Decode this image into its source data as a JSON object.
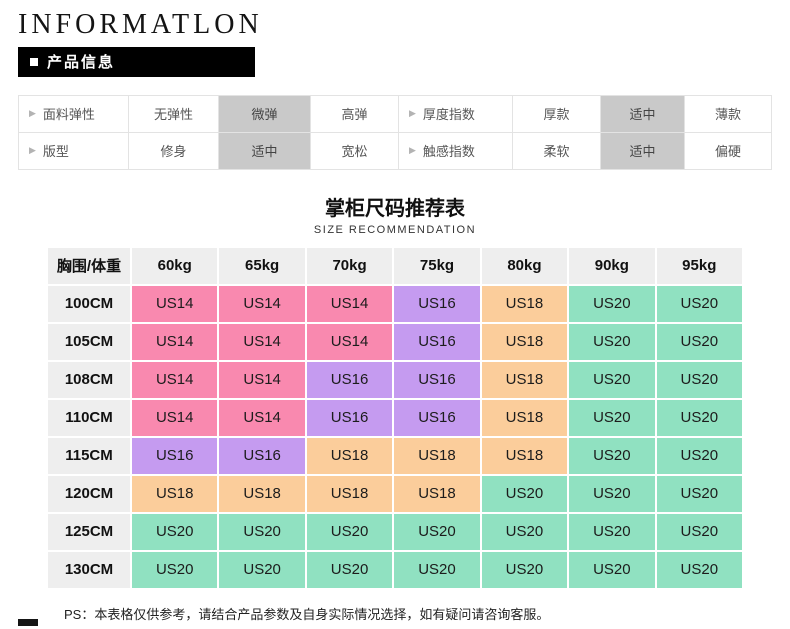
{
  "header": {
    "title": "INFORMATLON",
    "badge": "产品信息"
  },
  "attribute_table": {
    "rows": [
      {
        "cells": [
          {
            "label": "面料弹性",
            "type": "name"
          },
          {
            "label": "无弹性",
            "type": "value"
          },
          {
            "label": "微弹",
            "type": "value",
            "highlight": true
          },
          {
            "label": "高弹",
            "type": "value"
          },
          {
            "label": "厚度指数",
            "type": "name"
          },
          {
            "label": "厚款",
            "type": "value"
          },
          {
            "label": "适中",
            "type": "value",
            "highlight": true
          },
          {
            "label": "薄款",
            "type": "value"
          }
        ]
      },
      {
        "cells": [
          {
            "label": "版型",
            "type": "name"
          },
          {
            "label": "修身",
            "type": "value"
          },
          {
            "label": "适中",
            "type": "value",
            "highlight": true
          },
          {
            "label": "宽松",
            "type": "value"
          },
          {
            "label": "触感指数",
            "type": "name"
          },
          {
            "label": "柔软",
            "type": "value"
          },
          {
            "label": "适中",
            "type": "value",
            "highlight": true
          },
          {
            "label": "偏硬",
            "type": "value"
          }
        ]
      }
    ]
  },
  "size_section": {
    "title": "掌柜尺码推荐表",
    "subtitle": "SIZE RECOMMENDATION"
  },
  "size_table": {
    "columns": [
      "胸围/体重",
      "60kg",
      "65kg",
      "70kg",
      "75kg",
      "80kg",
      "90kg",
      "95kg"
    ],
    "rows": [
      {
        "label": "100CM",
        "cells": [
          {
            "value": "US14",
            "color": "pink"
          },
          {
            "value": "US14",
            "color": "pink"
          },
          {
            "value": "US14",
            "color": "pink"
          },
          {
            "value": "US16",
            "color": "purple"
          },
          {
            "value": "US18",
            "color": "orange"
          },
          {
            "value": "US20",
            "color": "green"
          },
          {
            "value": "US20",
            "color": "green"
          }
        ]
      },
      {
        "label": "105CM",
        "cells": [
          {
            "value": "US14",
            "color": "pink"
          },
          {
            "value": "US14",
            "color": "pink"
          },
          {
            "value": "US14",
            "color": "pink"
          },
          {
            "value": "US16",
            "color": "purple"
          },
          {
            "value": "US18",
            "color": "orange"
          },
          {
            "value": "US20",
            "color": "green"
          },
          {
            "value": "US20",
            "color": "green"
          }
        ]
      },
      {
        "label": "108CM",
        "cells": [
          {
            "value": "US14",
            "color": "pink"
          },
          {
            "value": "US14",
            "color": "pink"
          },
          {
            "value": "US16",
            "color": "purple"
          },
          {
            "value": "US16",
            "color": "purple"
          },
          {
            "value": "US18",
            "color": "orange"
          },
          {
            "value": "US20",
            "color": "green"
          },
          {
            "value": "US20",
            "color": "green"
          }
        ]
      },
      {
        "label": "110CM",
        "cells": [
          {
            "value": "US14",
            "color": "pink"
          },
          {
            "value": "US14",
            "color": "pink"
          },
          {
            "value": "US16",
            "color": "purple"
          },
          {
            "value": "US16",
            "color": "purple"
          },
          {
            "value": "US18",
            "color": "orange"
          },
          {
            "value": "US20",
            "color": "green"
          },
          {
            "value": "US20",
            "color": "green"
          }
        ]
      },
      {
        "label": "115CM",
        "cells": [
          {
            "value": "US16",
            "color": "purple"
          },
          {
            "value": "US16",
            "color": "purple"
          },
          {
            "value": "US18",
            "color": "orange"
          },
          {
            "value": "US18",
            "color": "orange"
          },
          {
            "value": "US18",
            "color": "orange"
          },
          {
            "value": "US20",
            "color": "green"
          },
          {
            "value": "US20",
            "color": "green"
          }
        ]
      },
      {
        "label": "120CM",
        "cells": [
          {
            "value": "US18",
            "color": "orange"
          },
          {
            "value": "US18",
            "color": "orange"
          },
          {
            "value": "US18",
            "color": "orange"
          },
          {
            "value": "US18",
            "color": "orange"
          },
          {
            "value": "US20",
            "color": "green"
          },
          {
            "value": "US20",
            "color": "green"
          },
          {
            "value": "US20",
            "color": "green"
          }
        ]
      },
      {
        "label": "125CM",
        "cells": [
          {
            "value": "US20",
            "color": "green"
          },
          {
            "value": "US20",
            "color": "green"
          },
          {
            "value": "US20",
            "color": "green"
          },
          {
            "value": "US20",
            "color": "green"
          },
          {
            "value": "US20",
            "color": "green"
          },
          {
            "value": "US20",
            "color": "green"
          },
          {
            "value": "US20",
            "color": "green"
          }
        ]
      },
      {
        "label": "130CM",
        "cells": [
          {
            "value": "US20",
            "color": "green"
          },
          {
            "value": "US20",
            "color": "green"
          },
          {
            "value": "US20",
            "color": "green"
          },
          {
            "value": "US20",
            "color": "green"
          },
          {
            "value": "US20",
            "color": "green"
          },
          {
            "value": "US20",
            "color": "green"
          },
          {
            "value": "US20",
            "color": "green"
          }
        ]
      }
    ]
  },
  "footnote": "PS：本表格仅供参考，请结合产品参数及自身实际情况选择，如有疑问请咨询客服。",
  "colors": {
    "pink": "#F989AF",
    "purple": "#C59BF0",
    "orange": "#FBCD9B",
    "green": "#90E1C1",
    "highlight": "#C9C9C9",
    "table_header_bg": "#EEEEEE",
    "badge_bg": "#000000"
  }
}
